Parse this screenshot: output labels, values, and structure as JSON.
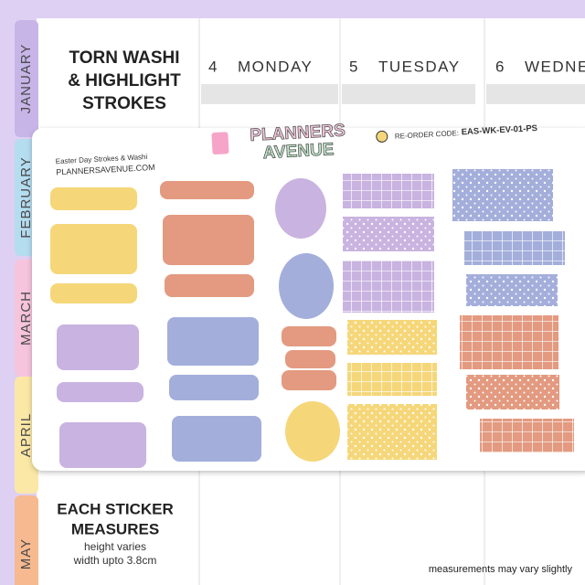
{
  "tabs": [
    "JANUARY",
    "FEBRUARY",
    "MARCH",
    "APRIL",
    "MAY"
  ],
  "title": [
    "TORN WASHI",
    "& HIGHLIGHT",
    "STROKES"
  ],
  "days": [
    {
      "number": 4,
      "name": "MONDAY"
    },
    {
      "number": 5,
      "name": "TUESDAY"
    },
    {
      "number": 6,
      "name": "WEDNE"
    }
  ],
  "sheet": {
    "name": "Easter Day Strokes & Washi",
    "website": "PLANNERSAVENUE.COM",
    "logo": [
      "PLANNERS",
      "AVENUE"
    ],
    "reorder_label": "RE-ORDER CODE:",
    "reorder_code": "EAS-WK-EV-01-PS"
  },
  "measures": {
    "title": [
      "EACH STICKER",
      "MEASURES"
    ],
    "notes": [
      "height varies",
      "width upto 3.8cm"
    ]
  },
  "footer_note": "measurements may vary slightly"
}
